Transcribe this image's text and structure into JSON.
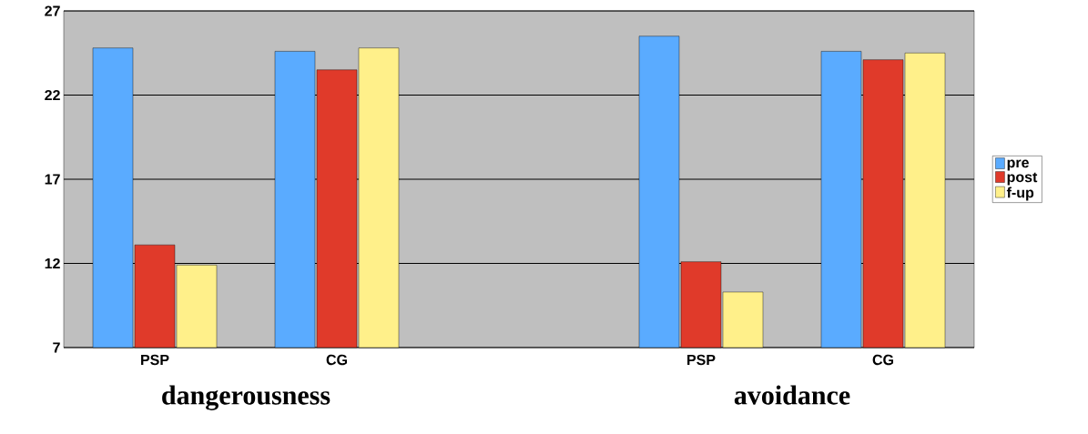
{
  "chart_data": {
    "type": "bar",
    "categories": [
      "PSP",
      "CG",
      null,
      "PSP",
      "CG"
    ],
    "series": [
      {
        "name": "pre",
        "color": "#5aabff",
        "values": [
          24.8,
          24.6,
          null,
          25.5,
          24.6
        ]
      },
      {
        "name": "post",
        "color": "#e03a2a",
        "values": [
          13.1,
          23.5,
          null,
          12.1,
          24.1
        ]
      },
      {
        "name": "f-up",
        "color": "#fff08a",
        "values": [
          11.9,
          24.8,
          null,
          10.3,
          24.5
        ]
      }
    ],
    "ylim": [
      7,
      27
    ],
    "yticks": [
      7,
      12,
      17,
      22,
      27
    ],
    "grid": "y",
    "legend": "right",
    "annotations": [
      "dangerousness",
      "avoidance"
    ]
  }
}
